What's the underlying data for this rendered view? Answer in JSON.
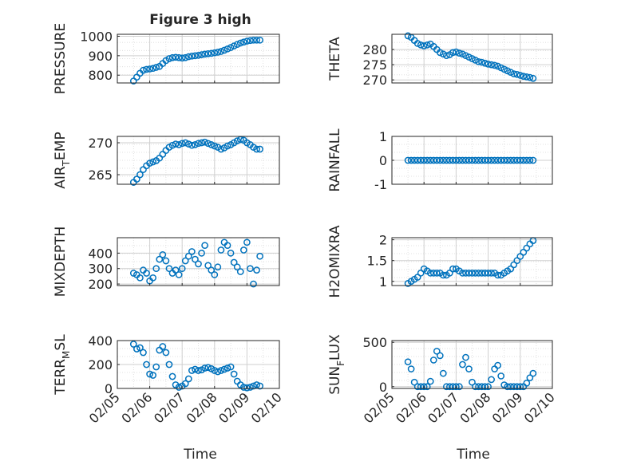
{
  "figure": {
    "title": "Figure 3 high"
  },
  "colors": {
    "marker": "#0072BD",
    "axis": "#262626",
    "grid": "#d9d9d9",
    "background": "#ffffff"
  },
  "chart_data": [
    {
      "id": "pressure",
      "type": "scatter",
      "ylabel": "PRESSURE",
      "title": "Figure 3 high",
      "xlim": [
        35.0,
        40.0
      ],
      "ylim": [
        760,
        1010
      ],
      "yticks": [
        800,
        900,
        1000
      ],
      "grid": true,
      "x": [
        35.5,
        35.6,
        35.7,
        35.8,
        35.9,
        36.0,
        36.1,
        36.2,
        36.3,
        36.4,
        36.5,
        36.6,
        36.7,
        36.8,
        36.9,
        37.0,
        37.1,
        37.2,
        37.3,
        37.4,
        37.5,
        37.6,
        37.7,
        37.8,
        37.9,
        38.0,
        38.1,
        38.2,
        38.3,
        38.4,
        38.5,
        38.6,
        38.7,
        38.8,
        38.9,
        39.0,
        39.1,
        39.2,
        39.3,
        39.4
      ],
      "y": [
        770,
        790,
        810,
        825,
        830,
        832,
        835,
        840,
        845,
        860,
        875,
        885,
        890,
        892,
        890,
        888,
        890,
        895,
        898,
        900,
        902,
        905,
        908,
        910,
        912,
        915,
        918,
        922,
        928,
        935,
        942,
        950,
        958,
        965,
        970,
        975,
        978,
        980,
        980,
        980
      ]
    },
    {
      "id": "theta",
      "type": "scatter",
      "ylabel": "THETA",
      "xlim": [
        35.0,
        40.0
      ],
      "ylim": [
        269,
        285
      ],
      "yticks": [
        270,
        275,
        280
      ],
      "grid": true,
      "x": [
        35.5,
        35.6,
        35.7,
        35.8,
        35.9,
        36.0,
        36.1,
        36.2,
        36.3,
        36.4,
        36.5,
        36.6,
        36.7,
        36.8,
        36.9,
        37.0,
        37.1,
        37.2,
        37.3,
        37.4,
        37.5,
        37.6,
        37.7,
        37.8,
        37.9,
        38.0,
        38.1,
        38.2,
        38.3,
        38.4,
        38.5,
        38.6,
        38.7,
        38.8,
        38.9,
        39.0,
        39.1,
        39.2,
        39.3,
        39.4
      ],
      "y": [
        284.5,
        284.0,
        283.0,
        282.0,
        281.5,
        281.2,
        281.5,
        281.8,
        281.0,
        280.0,
        279.0,
        278.5,
        278.0,
        278.3,
        279.0,
        279.2,
        278.8,
        278.5,
        278.0,
        277.5,
        277.0,
        276.5,
        276.0,
        275.8,
        275.5,
        275.2,
        275.0,
        274.8,
        274.5,
        274.0,
        273.5,
        273.0,
        272.5,
        272.0,
        271.8,
        271.5,
        271.2,
        271.0,
        270.8,
        270.5
      ]
    },
    {
      "id": "air_temp",
      "type": "scatter",
      "ylabel": "AIR",
      "ylabel_sub": "T",
      "ylabel_tail": "EMP",
      "xlim": [
        35.0,
        40.0
      ],
      "ylim": [
        263.5,
        271
      ],
      "yticks": [
        265,
        270
      ],
      "grid": true,
      "x": [
        35.5,
        35.6,
        35.7,
        35.8,
        35.9,
        36.0,
        36.1,
        36.2,
        36.3,
        36.4,
        36.5,
        36.6,
        36.7,
        36.8,
        36.9,
        37.0,
        37.1,
        37.2,
        37.3,
        37.4,
        37.5,
        37.6,
        37.7,
        37.8,
        37.9,
        38.0,
        38.1,
        38.2,
        38.3,
        38.4,
        38.5,
        38.6,
        38.7,
        38.8,
        38.9,
        39.0,
        39.1,
        39.2,
        39.3,
        39.4
      ],
      "y": [
        263.8,
        264.3,
        265.0,
        265.8,
        266.4,
        266.8,
        267.0,
        267.2,
        267.6,
        268.2,
        268.8,
        269.3,
        269.6,
        269.8,
        269.7,
        269.9,
        270.0,
        269.8,
        269.6,
        269.7,
        269.9,
        270.0,
        270.1,
        269.9,
        269.7,
        269.5,
        269.3,
        269.0,
        269.2,
        269.5,
        269.7,
        270.0,
        270.3,
        270.5,
        270.4,
        270.0,
        269.7,
        269.3,
        269.0,
        269.0
      ]
    },
    {
      "id": "rainfall",
      "type": "scatter",
      "ylabel": "RAINFALL",
      "xlim": [
        35.0,
        40.0
      ],
      "ylim": [
        -1,
        1
      ],
      "yticks": [
        -1,
        0,
        1
      ],
      "grid": true,
      "x": [
        35.5,
        35.6,
        35.7,
        35.8,
        35.9,
        36.0,
        36.1,
        36.2,
        36.3,
        36.4,
        36.5,
        36.6,
        36.7,
        36.8,
        36.9,
        37.0,
        37.1,
        37.2,
        37.3,
        37.4,
        37.5,
        37.6,
        37.7,
        37.8,
        37.9,
        38.0,
        38.1,
        38.2,
        38.3,
        38.4,
        38.5,
        38.6,
        38.7,
        38.8,
        38.9,
        39.0,
        39.1,
        39.2,
        39.3,
        39.4
      ],
      "y": [
        0,
        0,
        0,
        0,
        0,
        0,
        0,
        0,
        0,
        0,
        0,
        0,
        0,
        0,
        0,
        0,
        0,
        0,
        0,
        0,
        0,
        0,
        0,
        0,
        0,
        0,
        0,
        0,
        0,
        0,
        0,
        0,
        0,
        0,
        0,
        0,
        0,
        0,
        0,
        0
      ]
    },
    {
      "id": "mixdepth",
      "type": "scatter",
      "ylabel": "MIXDEPTH",
      "xlim": [
        35.0,
        40.0
      ],
      "ylim": [
        190,
        500
      ],
      "yticks": [
        200,
        300,
        400
      ],
      "grid": true,
      "x": [
        35.5,
        35.6,
        35.7,
        35.8,
        35.9,
        36.0,
        36.1,
        36.2,
        36.3,
        36.4,
        36.5,
        36.6,
        36.7,
        36.8,
        36.9,
        37.0,
        37.1,
        37.2,
        37.3,
        37.4,
        37.5,
        37.6,
        37.7,
        37.8,
        37.9,
        38.0,
        38.1,
        38.2,
        38.3,
        38.4,
        38.5,
        38.6,
        38.7,
        38.8,
        38.9,
        39.0,
        39.1,
        39.2,
        39.3,
        39.4
      ],
      "y": [
        270,
        260,
        240,
        290,
        270,
        220,
        240,
        300,
        360,
        390,
        350,
        300,
        270,
        290,
        260,
        300,
        350,
        380,
        410,
        360,
        330,
        400,
        450,
        320,
        290,
        260,
        310,
        420,
        470,
        450,
        400,
        340,
        310,
        280,
        420,
        470,
        300,
        200,
        290,
        380
      ]
    },
    {
      "id": "h2omixra",
      "type": "scatter",
      "ylabel": "H2OMIXRA",
      "xlim": [
        35.0,
        40.0
      ],
      "ylim": [
        0.9,
        2.05
      ],
      "yticks": [
        1,
        1.5,
        2
      ],
      "grid": true,
      "x": [
        35.5,
        35.6,
        35.7,
        35.8,
        35.9,
        36.0,
        36.1,
        36.2,
        36.3,
        36.4,
        36.5,
        36.6,
        36.7,
        36.8,
        36.9,
        37.0,
        37.1,
        37.2,
        37.3,
        37.4,
        37.5,
        37.6,
        37.7,
        37.8,
        37.9,
        38.0,
        38.1,
        38.2,
        38.3,
        38.4,
        38.5,
        38.6,
        38.7,
        38.8,
        38.9,
        39.0,
        39.1,
        39.2,
        39.3,
        39.4
      ],
      "y": [
        0.95,
        1.0,
        1.05,
        1.1,
        1.2,
        1.3,
        1.25,
        1.2,
        1.2,
        1.2,
        1.2,
        1.15,
        1.15,
        1.2,
        1.3,
        1.3,
        1.25,
        1.2,
        1.2,
        1.2,
        1.2,
        1.2,
        1.2,
        1.2,
        1.2,
        1.2,
        1.2,
        1.2,
        1.15,
        1.15,
        1.2,
        1.25,
        1.3,
        1.4,
        1.5,
        1.6,
        1.7,
        1.8,
        1.9,
        1.98
      ]
    },
    {
      "id": "terr_msl",
      "type": "scatter",
      "ylabel": "TERR",
      "ylabel_sub": "M",
      "ylabel_tail": "SL",
      "xlim": [
        35.0,
        40.0
      ],
      "ylim": [
        0,
        400
      ],
      "yticks": [
        0,
        200,
        400
      ],
      "grid": true,
      "x": [
        35.5,
        35.6,
        35.7,
        35.8,
        35.9,
        36.0,
        36.1,
        36.2,
        36.3,
        36.4,
        36.5,
        36.6,
        36.7,
        36.8,
        36.9,
        37.0,
        37.1,
        37.2,
        37.3,
        37.4,
        37.5,
        37.6,
        37.7,
        37.8,
        37.9,
        38.0,
        38.1,
        38.2,
        38.3,
        38.4,
        38.5,
        38.6,
        38.7,
        38.8,
        38.9,
        39.0,
        39.1,
        39.2,
        39.3,
        39.4
      ],
      "y": [
        370,
        330,
        340,
        300,
        200,
        120,
        110,
        180,
        320,
        350,
        300,
        200,
        100,
        30,
        10,
        20,
        40,
        80,
        150,
        160,
        150,
        155,
        170,
        175,
        165,
        150,
        140,
        150,
        160,
        170,
        180,
        120,
        60,
        30,
        10,
        5,
        10,
        20,
        30,
        20
      ]
    },
    {
      "id": "sun_flux",
      "type": "scatter",
      "ylabel": "SUN",
      "ylabel_sub": "F",
      "ylabel_tail": "LUX",
      "xlim": [
        35.0,
        40.0
      ],
      "ylim": [
        -20,
        520
      ],
      "yticks": [
        0,
        500
      ],
      "grid": true,
      "x": [
        35.5,
        35.6,
        35.7,
        35.8,
        35.9,
        36.0,
        36.1,
        36.2,
        36.3,
        36.4,
        36.5,
        36.6,
        36.7,
        36.8,
        36.9,
        37.0,
        37.1,
        37.2,
        37.3,
        37.4,
        37.5,
        37.6,
        37.7,
        37.8,
        37.9,
        38.0,
        38.1,
        38.2,
        38.3,
        38.4,
        38.5,
        38.6,
        38.7,
        38.8,
        38.9,
        39.0,
        39.1,
        39.2,
        39.3,
        39.4
      ],
      "y": [
        280,
        200,
        50,
        0,
        0,
        0,
        0,
        60,
        300,
        400,
        350,
        150,
        0,
        0,
        0,
        0,
        0,
        250,
        330,
        200,
        50,
        0,
        0,
        0,
        0,
        0,
        80,
        200,
        240,
        120,
        20,
        0,
        0,
        0,
        0,
        0,
        0,
        40,
        100,
        150
      ]
    }
  ],
  "x_axis": {
    "label": "Time",
    "tick_values": [
      35.0,
      36.0,
      37.0,
      38.0,
      39.0,
      40.0
    ],
    "tick_labels": [
      "02/05",
      "02/06",
      "02/07",
      "02/08",
      "02/09",
      "02/10"
    ]
  }
}
